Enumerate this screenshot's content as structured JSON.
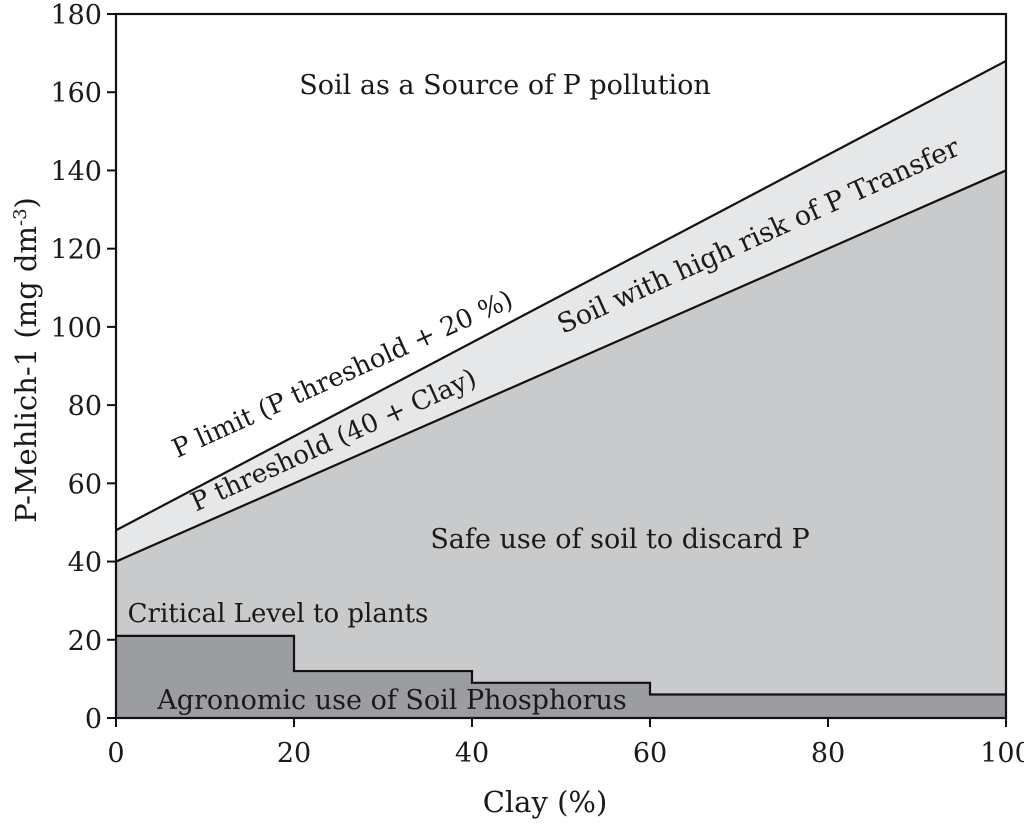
{
  "chart_data": {
    "type": "area",
    "xlabel": "Clay (%)",
    "ylabel_main": "P-Mehlich-1 (mg dm",
    "ylabel_exp": "-3",
    "ylabel_close": ")",
    "xlim": [
      0,
      100
    ],
    "ylim": [
      0,
      180
    ],
    "x_ticks": [
      0,
      20,
      40,
      60,
      80,
      100
    ],
    "y_ticks": [
      0,
      20,
      40,
      60,
      80,
      100,
      120,
      140,
      160,
      180
    ],
    "series": [
      {
        "name": "P limit (P threshold + 20 %)",
        "x": [
          0,
          100
        ],
        "y": [
          48,
          168
        ]
      },
      {
        "name": "P threshold (40 + Clay)",
        "x": [
          0,
          100
        ],
        "y": [
          40,
          140
        ]
      },
      {
        "name": "Critical Level to plants",
        "x": [
          0,
          20,
          20,
          40,
          40,
          60,
          60,
          100
        ],
        "y": [
          21,
          21,
          12,
          12,
          9,
          9,
          6,
          6
        ]
      }
    ],
    "zones": {
      "pollution": "Soil as a Source of P pollution",
      "high_risk": "Soil with high risk of P Transfer",
      "safe": "Safe use of soil to discard P",
      "agronomic": "Agronomic use of Soil Phosphorus"
    },
    "colors": {
      "high_risk_fill": "#e6e7e9",
      "safe_fill": "#c9cacc",
      "agronomic_fill": "#9c9da0",
      "line": "#111111"
    },
    "grid": false
  }
}
